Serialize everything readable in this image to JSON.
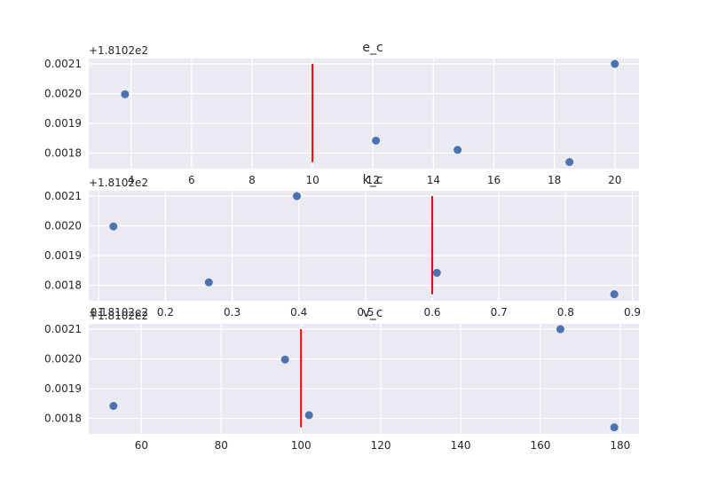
{
  "chart_data": [
    {
      "type": "scatter",
      "title": "e_c",
      "y_offset_label": "+1.8102e2",
      "y_ticks": [
        "0.0018",
        "0.0019",
        "0.0020",
        "0.0021"
      ],
      "x_ticks": [
        4,
        6,
        8,
        10,
        12,
        14,
        16,
        18,
        20
      ],
      "xlim": [
        2.6,
        20.8
      ],
      "ylim": [
        0.001748,
        0.002118
      ],
      "points": [
        {
          "x": 3.8,
          "y": 0.001998
        },
        {
          "x": 12.1,
          "y": 0.001842
        },
        {
          "x": 14.8,
          "y": 0.001811
        },
        {
          "x": 18.5,
          "y": 0.00177
        },
        {
          "x": 20.0,
          "y": 0.0021
        }
      ],
      "vline": {
        "x": 10,
        "y_from": 0.00177,
        "y_to": 0.0021,
        "color": "#ff0000"
      },
      "point_color": "#4c72b0",
      "grid": true
    },
    {
      "type": "scatter",
      "title": "k_c",
      "y_offset_label": "+1.8102e2",
      "x_offset_label": "+1.8102e2",
      "y_ticks": [
        "0.0018",
        "0.0019",
        "0.0020",
        "0.0021"
      ],
      "x_ticks": [
        0.1,
        0.2,
        0.3,
        0.4,
        0.5,
        0.6,
        0.7,
        0.8,
        0.9
      ],
      "xlim": [
        0.085,
        0.91
      ],
      "ylim": [
        0.001748,
        0.002118
      ],
      "points": [
        {
          "x": 0.122,
          "y": 0.001998
        },
        {
          "x": 0.265,
          "y": 0.00181
        },
        {
          "x": 0.397,
          "y": 0.0021
        },
        {
          "x": 0.607,
          "y": 0.001842
        },
        {
          "x": 0.873,
          "y": 0.00177
        }
      ],
      "vline": {
        "x": 0.6,
        "y_from": 0.00177,
        "y_to": 0.0021,
        "color": "#ff0000"
      },
      "point_color": "#4c72b0",
      "grid": true
    },
    {
      "type": "scatter",
      "title": "v_c",
      "y_offset_label": "+1.8102e2",
      "y_ticks": [
        "0.0018",
        "0.0019",
        "0.0020",
        "0.0021"
      ],
      "x_ticks": [
        60,
        80,
        100,
        120,
        140,
        160,
        180
      ],
      "xlim": [
        46.8,
        184.7
      ],
      "ylim": [
        0.001748,
        0.002118
      ],
      "points": [
        {
          "x": 53.0,
          "y": 0.001842
        },
        {
          "x": 96.0,
          "y": 0.001998
        },
        {
          "x": 102.0,
          "y": 0.001811
        },
        {
          "x": 165.0,
          "y": 0.0021
        },
        {
          "x": 178.5,
          "y": 0.00177
        }
      ],
      "vline": {
        "x": 100,
        "y_from": 0.00177,
        "y_to": 0.0021,
        "color": "#ff0000"
      },
      "point_color": "#4c72b0",
      "grid": true
    }
  ]
}
